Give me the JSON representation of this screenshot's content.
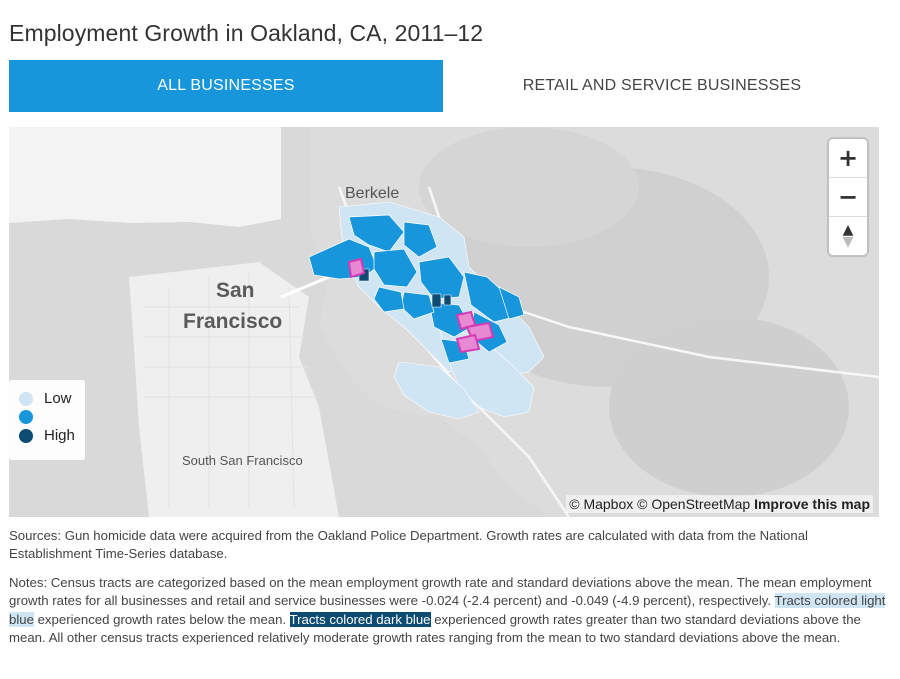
{
  "title": "Employment Growth in Oakland, CA, 2011–12",
  "tabs": {
    "all": "ALL BUSINESSES",
    "retail": "RETAIL AND SERVICE BUSINESSES"
  },
  "map": {
    "labels": {
      "berkeley": "Berkele",
      "san_francisco_1": "San",
      "san_francisco_2": "Francisco",
      "south_sf": "South San Francisco"
    },
    "zoom": {
      "in": "+",
      "out": "−",
      "compass": "▲"
    },
    "legend": [
      {
        "label": "Low",
        "color": "#cfe5f3"
      },
      {
        "label": "",
        "color": "#1796dc"
      },
      {
        "label": "High",
        "color": "#0d4b73"
      }
    ],
    "attribution": {
      "mapbox": "© Mapbox",
      "osm": "© OpenStreetMap",
      "improve": "Improve this map"
    },
    "highlight_color": "#d43bb4"
  },
  "sources": "Sources: Gun homicide data were acquired from the Oakland Police Department. Growth rates are calculated with data from the National Establishment Time-Series database.",
  "notes": {
    "part1": "Notes: Census tracts are categorized based on the mean employment growth rate and standard deviations above the mean. The mean employment growth rates for all businesses and retail and service businesses were -0.024 (-2.4 percent) and -0.049 (-4.9 percent), respectively. ",
    "light": "Tracts colored light blue",
    "part2": " experienced growth rates below the mean. ",
    "dark": "Tracts colored dark blue",
    "part3": " experienced growth rates greater than two standard deviations above the mean. All other census tracts experienced relatively moderate growth rates ranging from the mean to two standard deviations above the mean."
  }
}
